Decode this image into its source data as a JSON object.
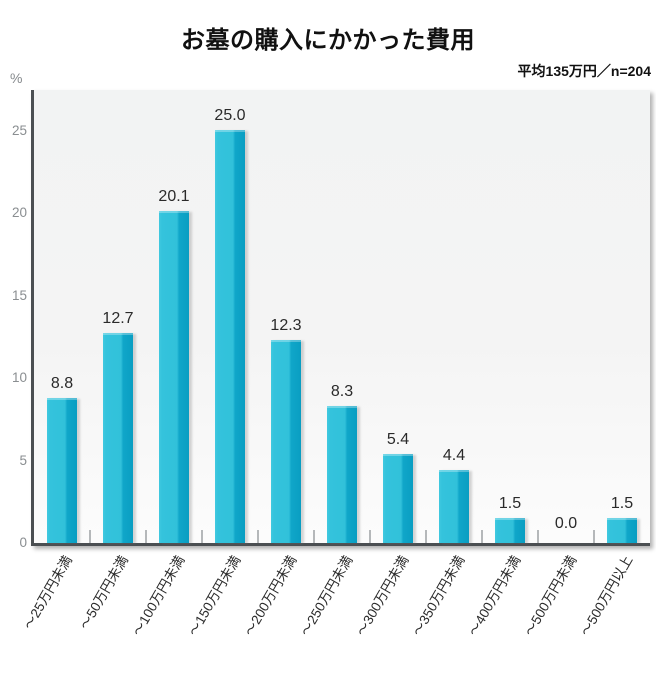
{
  "header": {
    "title": "お墓の購入にかかった費用",
    "note": "平均135万円／n=204"
  },
  "y_axis": {
    "unit": "%"
  },
  "chart_data": {
    "type": "bar",
    "title": "お墓の購入にかかった費用",
    "annotation": "平均135万円／n=204",
    "sample_note": "n=204",
    "average_note": "平均135万円",
    "categories": [
      "〜25万円未満",
      "〜50万円未満",
      "〜100万円未満",
      "〜150万円未満",
      "〜200万円未満",
      "〜250万円未満",
      "〜300万円未満",
      "〜350万円未満",
      "〜400万円未満",
      "〜500万円未満",
      "〜500万円以上"
    ],
    "values": [
      8.8,
      12.7,
      20.1,
      25.0,
      12.3,
      8.3,
      5.4,
      4.4,
      1.5,
      0.0,
      1.5
    ],
    "xlabel": "",
    "ylabel": "%",
    "ylim": [
      0,
      27.5
    ],
    "yticks": [
      0,
      5,
      10,
      15,
      20,
      25
    ],
    "grid": false,
    "legend": "none",
    "value_labels_shown": true,
    "x_label_rotation_deg": -60,
    "colors": {
      "bar_light": "#34c3dc",
      "bar_dark": "#0a9fc3",
      "axis": "#4b4f52",
      "plot_bg": "#f4f4f4",
      "tick_label": "#8a8e91",
      "value_label": "#2a2a2a",
      "page_bg": "#ffffff"
    }
  }
}
